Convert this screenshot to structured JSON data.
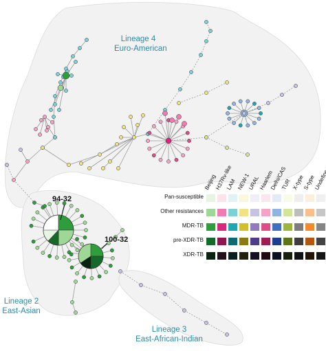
{
  "lineages": [
    {
      "name": "Lineage 4",
      "sub": "Euro-American"
    },
    {
      "name": "Lineage 2",
      "sub": "East-Asian"
    },
    {
      "name": "Lineage 3",
      "sub": "East-African-Indian"
    }
  ],
  "cluster_labels": [
    "94-32",
    "100-32"
  ],
  "legend": {
    "columns": [
      "Beijing",
      "H37Rv-like",
      "LAM",
      "NEW-1",
      "URAL",
      "Haarlem",
      "Delhi/CAS",
      "TUR",
      "X-type",
      "S-type",
      "Undefined"
    ],
    "rows": [
      "Pan-susceptible",
      "Other resistances",
      "MDR-TB",
      "pre-XDR-TB",
      "XDR-TB"
    ],
    "colors": [
      [
        "#e6f4e2",
        "#fde3ec",
        "#e0f3f4",
        "#fbf7d9",
        "#f0eef6",
        "#fbe6ef",
        "#e3ecf6",
        "#f8fbe6",
        "#eeeeee",
        "#fdeedd",
        "#efefef"
      ],
      [
        "#9fd796",
        "#f07bb0",
        "#7fd0d6",
        "#eee487",
        "#c7c2df",
        "#f3a3c5",
        "#8fb5e0",
        "#d4e49a",
        "#bdbdbd",
        "#f9c08e",
        "#c6c6c6"
      ],
      [
        "#2d9e3b",
        "#d6297e",
        "#1fa6b3",
        "#d1bf2c",
        "#8f7cbc",
        "#df4d88",
        "#3f6fc1",
        "#9cb53c",
        "#7d7d7d",
        "#f08a2b",
        "#858585"
      ],
      [
        "#156a29",
        "#8e1550",
        "#0d6a75",
        "#8a7914",
        "#4f3d8c",
        "#9c1e55",
        "#1f3f8e",
        "#5f7317",
        "#3e3e3e",
        "#b45510",
        "#434343"
      ],
      [
        "#0a2210",
        "#22101a",
        "#0a1e22",
        "#22200a",
        "#160f22",
        "#220a14",
        "#0a1022",
        "#181f08",
        "#111111",
        "#221306",
        "#151515"
      ]
    ]
  }
}
